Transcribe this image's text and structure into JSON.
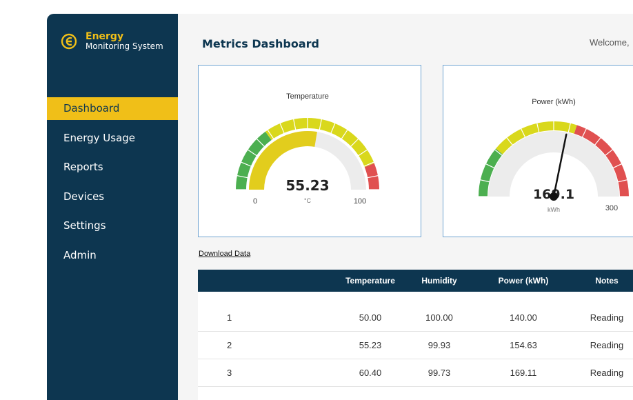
{
  "app": {
    "title": "Energy",
    "subtitle": "Monitoring System"
  },
  "sidebar": {
    "items": [
      {
        "label": "Dashboard",
        "active": true
      },
      {
        "label": "Energy Usage",
        "active": false
      },
      {
        "label": "Reports",
        "active": false
      },
      {
        "label": "Devices",
        "active": false
      },
      {
        "label": "Settings",
        "active": false
      },
      {
        "label": "Admin",
        "active": false
      }
    ]
  },
  "header": {
    "title": "Metrics Dashboard",
    "welcome": "Welcome,"
  },
  "gauges": {
    "temperature": {
      "title": "Temperature",
      "value": "55.23",
      "unit": "°C",
      "min": "0",
      "max": "100",
      "value_fraction": 0.5523
    },
    "power": {
      "title": "Power (kWh)",
      "value": "169.1",
      "unit": "kWh",
      "max": "300",
      "value_fraction": 0.5637
    }
  },
  "download_label": "Download Data",
  "table": {
    "headers": [
      "Temperature",
      "Humidity",
      "Power (kWh)",
      "Notes"
    ],
    "rows": [
      {
        "index": "1",
        "temperature": "50.00",
        "humidity": "100.00",
        "power": "140.00",
        "notes": "Reading"
      },
      {
        "index": "2",
        "temperature": "55.23",
        "humidity": "99.93",
        "power": "154.63",
        "notes": "Reading"
      },
      {
        "index": "3",
        "temperature": "60.40",
        "humidity": "99.73",
        "power": "169.11",
        "notes": "Reading"
      }
    ]
  },
  "colors": {
    "sidebar": "#0d3650",
    "accent": "#f0bf18",
    "gauge_green": "#4caf50",
    "gauge_yellow": "#d9d81c",
    "gauge_red": "#e05050",
    "gauge_fill": "#e2cd1d"
  }
}
